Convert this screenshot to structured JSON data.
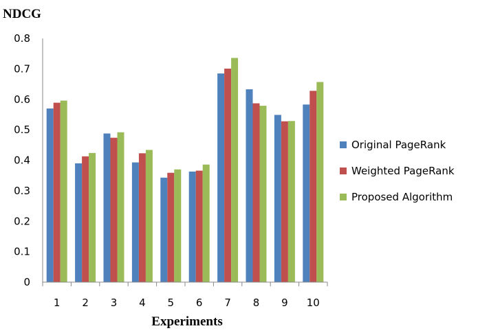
{
  "chart_data": {
    "type": "bar",
    "ylabel": "NDCG",
    "xlabel": "Experiments",
    "categories": [
      "1",
      "2",
      "3",
      "4",
      "5",
      "6",
      "7",
      "8",
      "9",
      "10"
    ],
    "ylim": [
      0,
      0.8
    ],
    "yticks": [
      "0",
      "0.1",
      "0.2",
      "0.3",
      "0.4",
      "0.5",
      "0.6",
      "0.7",
      "0.8"
    ],
    "legend_position": "right",
    "grid": false,
    "series": [
      {
        "name": "Original PageRank",
        "color": "#4F81BD",
        "values": [
          0.57,
          0.39,
          0.488,
          0.393,
          0.343,
          0.363,
          0.685,
          0.633,
          0.549,
          0.583
        ]
      },
      {
        "name": "Weighted PageRank",
        "color": "#C0504D",
        "values": [
          0.589,
          0.413,
          0.474,
          0.423,
          0.359,
          0.366,
          0.701,
          0.587,
          0.528,
          0.628
        ]
      },
      {
        "name": "Proposed Algorithm",
        "color": "#9BBB59",
        "values": [
          0.596,
          0.424,
          0.492,
          0.434,
          0.37,
          0.386,
          0.736,
          0.579,
          0.529,
          0.657
        ]
      }
    ]
  }
}
